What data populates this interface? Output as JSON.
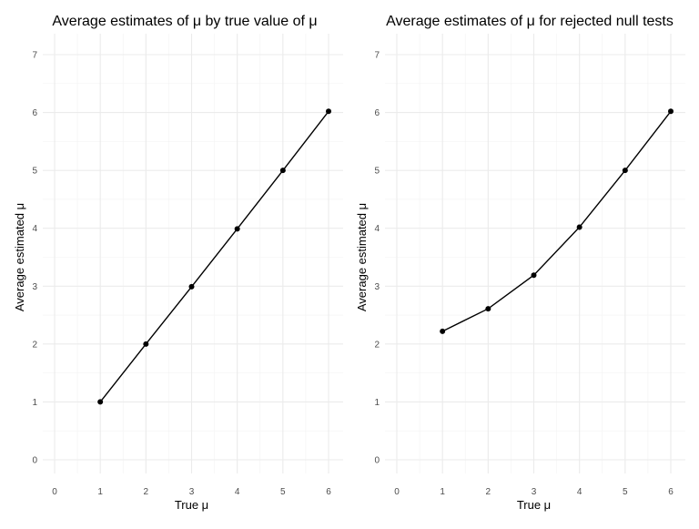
{
  "chart_data": [
    {
      "type": "line",
      "title": "Average estimates of μ by true value of μ",
      "xlabel": "True μ",
      "ylabel": "Average estimated μ",
      "xlim": [
        0,
        6
      ],
      "ylim": [
        0,
        7
      ],
      "xticks": [
        "0",
        "1",
        "2",
        "3",
        "4",
        "5",
        "6"
      ],
      "yticks": [
        "0",
        "1",
        "2",
        "3",
        "4",
        "5",
        "6",
        "7"
      ],
      "grid": true,
      "x": [
        1,
        2,
        3,
        4,
        5,
        6
      ],
      "values": [
        1.0,
        2.0,
        2.99,
        3.99,
        5.0,
        6.02
      ]
    },
    {
      "type": "line",
      "title": "Average estimates of μ for rejected null tests",
      "xlabel": "True μ",
      "ylabel": "Average estimated μ",
      "xlim": [
        0,
        6
      ],
      "ylim": [
        0,
        7
      ],
      "xticks": [
        "0",
        "1",
        "2",
        "3",
        "4",
        "5",
        "6"
      ],
      "yticks": [
        "0",
        "1",
        "2",
        "3",
        "4",
        "5",
        "6",
        "7"
      ],
      "grid": true,
      "x": [
        1,
        2,
        3,
        4,
        5,
        6
      ],
      "values": [
        2.22,
        2.61,
        3.19,
        4.02,
        5.0,
        6.02
      ]
    }
  ]
}
